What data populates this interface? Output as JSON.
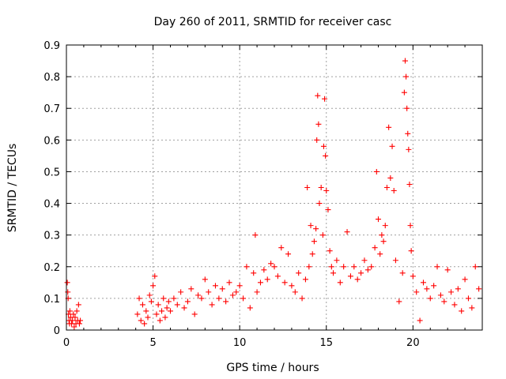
{
  "chart_data": {
    "type": "scatter",
    "title": "Day 260 of 2011, SRMTID for receiver casc",
    "xlabel": "GPS time / hours",
    "ylabel": "SRMTID / TECUs",
    "xlim": [
      0,
      24
    ],
    "ylim": [
      0,
      0.9
    ],
    "xticks": [
      0,
      5,
      10,
      15,
      20
    ],
    "yticks": [
      0,
      0.1,
      0.2,
      0.3,
      0.4,
      0.5,
      0.6,
      0.7,
      0.8,
      0.9
    ],
    "xtick_labels": [
      "0",
      "5",
      "10",
      "15",
      "20"
    ],
    "ytick_labels": [
      "0",
      "0.1",
      "0.2",
      "0.3",
      "0.4",
      "0.5",
      "0.6",
      "0.7",
      "0.8",
      "0.9"
    ],
    "grid": true,
    "marker": "+",
    "marker_color": "#ff0000",
    "series": [
      {
        "name": "SRMTID",
        "x": [
          0.05,
          0.08,
          0.1,
          0.12,
          0.15,
          0.18,
          0.2,
          0.25,
          0.3,
          0.35,
          0.4,
          0.45,
          0.5,
          0.55,
          0.6,
          0.65,
          0.7,
          0.75,
          0.8,
          4.1,
          4.2,
          4.3,
          4.4,
          4.5,
          4.6,
          4.7,
          4.8,
          4.9,
          5.0,
          5.1,
          5.2,
          5.3,
          5.4,
          5.5,
          5.6,
          5.7,
          5.8,
          5.9,
          6.0,
          6.2,
          6.4,
          6.6,
          6.8,
          7.0,
          7.2,
          7.4,
          7.6,
          7.8,
          8.0,
          8.2,
          8.4,
          8.6,
          8.8,
          9.0,
          9.2,
          9.4,
          9.6,
          9.8,
          10.0,
          10.2,
          10.4,
          10.6,
          10.8,
          10.9,
          11.0,
          11.2,
          11.4,
          11.6,
          11.8,
          12.0,
          12.2,
          12.4,
          12.6,
          12.8,
          13.0,
          13.2,
          13.4,
          13.6,
          13.8,
          13.9,
          14.0,
          14.1,
          14.2,
          14.3,
          14.4,
          14.45,
          14.5,
          14.55,
          14.6,
          14.7,
          14.8,
          14.85,
          14.9,
          14.95,
          15.0,
          15.1,
          15.2,
          15.3,
          15.4,
          15.6,
          15.8,
          16.0,
          16.2,
          16.4,
          16.6,
          16.8,
          17.0,
          17.2,
          17.4,
          17.6,
          17.8,
          17.9,
          18.0,
          18.1,
          18.2,
          18.3,
          18.4,
          18.5,
          18.6,
          18.7,
          18.8,
          18.9,
          19.0,
          19.2,
          19.4,
          19.5,
          19.55,
          19.6,
          19.65,
          19.7,
          19.75,
          19.8,
          19.85,
          19.9,
          20.0,
          20.2,
          20.4,
          20.6,
          20.8,
          21.0,
          21.2,
          21.4,
          21.6,
          21.8,
          22.0,
          22.2,
          22.4,
          22.6,
          22.8,
          23.0,
          23.2,
          23.4,
          23.6,
          23.8
        ],
        "y": [
          0.15,
          0.12,
          0.1,
          0.05,
          0.03,
          0.02,
          0.06,
          0.04,
          0.02,
          0.03,
          0.05,
          0.01,
          0.04,
          0.02,
          0.06,
          0.03,
          0.08,
          0.02,
          0.03,
          0.05,
          0.1,
          0.03,
          0.08,
          0.02,
          0.06,
          0.04,
          0.11,
          0.09,
          0.14,
          0.17,
          0.05,
          0.08,
          0.03,
          0.06,
          0.1,
          0.04,
          0.07,
          0.09,
          0.06,
          0.1,
          0.08,
          0.12,
          0.07,
          0.09,
          0.13,
          0.05,
          0.11,
          0.1,
          0.16,
          0.12,
          0.08,
          0.14,
          0.1,
          0.13,
          0.09,
          0.15,
          0.11,
          0.12,
          0.14,
          0.1,
          0.2,
          0.07,
          0.18,
          0.3,
          0.12,
          0.15,
          0.19,
          0.16,
          0.21,
          0.2,
          0.17,
          0.26,
          0.15,
          0.24,
          0.14,
          0.12,
          0.18,
          0.1,
          0.16,
          0.45,
          0.2,
          0.33,
          0.24,
          0.28,
          0.32,
          0.6,
          0.74,
          0.65,
          0.4,
          0.45,
          0.3,
          0.58,
          0.73,
          0.55,
          0.44,
          0.38,
          0.25,
          0.2,
          0.18,
          0.22,
          0.15,
          0.2,
          0.31,
          0.17,
          0.2,
          0.16,
          0.18,
          0.22,
          0.19,
          0.2,
          0.26,
          0.5,
          0.35,
          0.24,
          0.3,
          0.28,
          0.33,
          0.45,
          0.64,
          0.48,
          0.58,
          0.44,
          0.22,
          0.09,
          0.18,
          0.75,
          0.85,
          0.8,
          0.7,
          0.62,
          0.57,
          0.46,
          0.33,
          0.25,
          0.17,
          0.12,
          0.03,
          0.15,
          0.13,
          0.1,
          0.14,
          0.2,
          0.11,
          0.09,
          0.19,
          0.12,
          0.08,
          0.13,
          0.06,
          0.16,
          0.1,
          0.07,
          0.2,
          0.13
        ]
      }
    ]
  }
}
